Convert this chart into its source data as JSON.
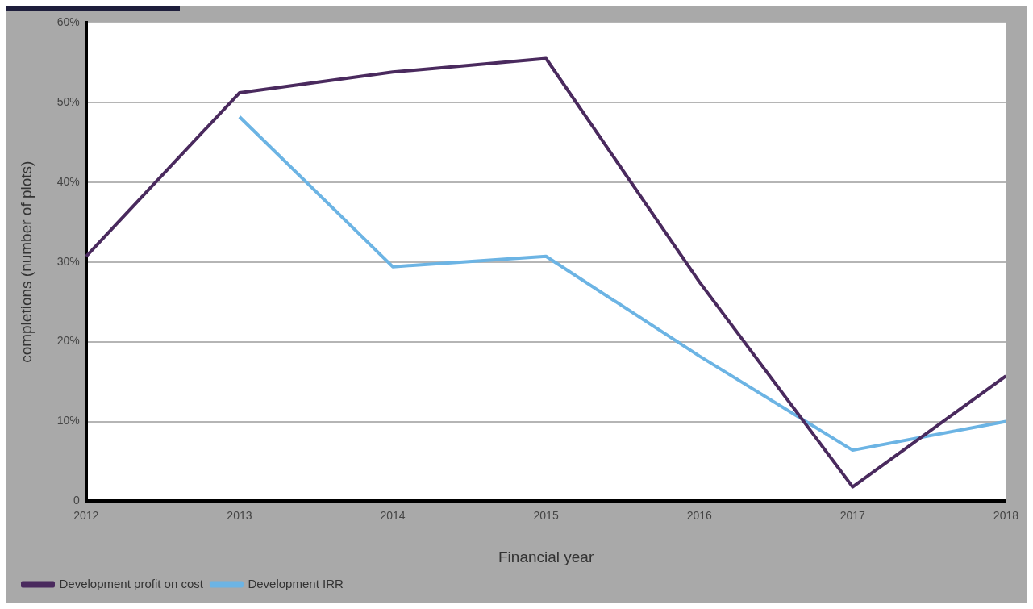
{
  "chart_data": {
    "type": "line",
    "xlabel": "Financial year",
    "ylabel": "completions (number of plots)",
    "categories": [
      "2012",
      "2013",
      "2014",
      "2015",
      "2016",
      "2017",
      "2018"
    ],
    "series": [
      {
        "name": "Development profit on cost",
        "color": "#4a2a5e",
        "values": [
          30.7,
          51.2,
          53.8,
          55.5,
          27.5,
          1.8,
          15.7
        ]
      },
      {
        "name": "Development IRR",
        "color": "#6cb4e4",
        "values": [
          null,
          48.2,
          29.4,
          30.7,
          18.2,
          6.4,
          10.0
        ]
      }
    ],
    "ylim": [
      0,
      60
    ],
    "yticks": [
      {
        "value": 0,
        "label": "0"
      },
      {
        "value": 10,
        "label": "10%"
      },
      {
        "value": 20,
        "label": "20%"
      },
      {
        "value": 30,
        "label": "30%"
      },
      {
        "value": 40,
        "label": "40%"
      },
      {
        "value": 50,
        "label": "50%"
      },
      {
        "value": 60,
        "label": "60%"
      }
    ],
    "grid": "y",
    "legend": "bottom left",
    "marker": "none",
    "line_style": "solid"
  }
}
